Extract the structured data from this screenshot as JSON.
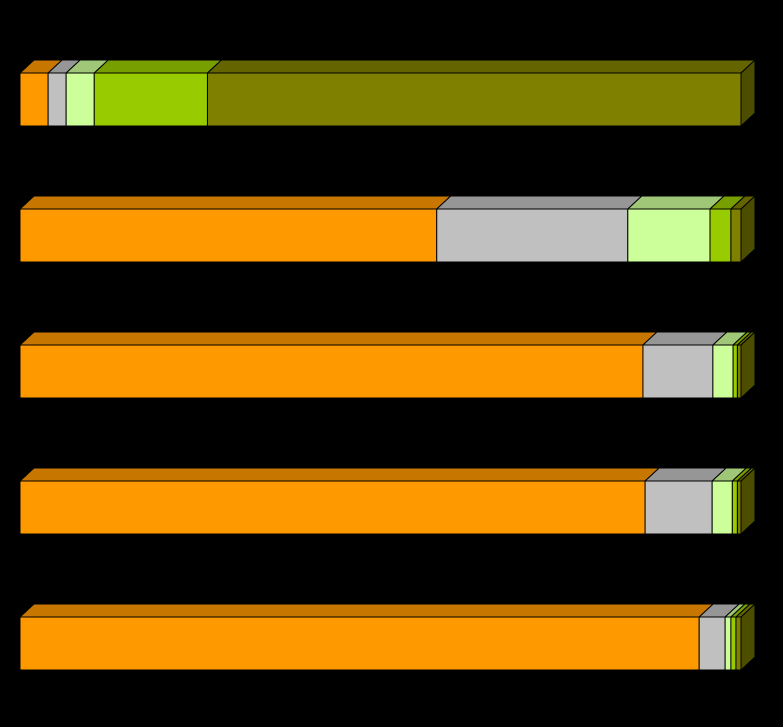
{
  "chart_data": {
    "type": "stacked_bar_3d",
    "orientation": "horizontal",
    "categories": [
      null,
      null,
      null,
      null,
      null
    ],
    "xlim": [
      0,
      100
    ],
    "series": [
      {
        "color": "#ff9900",
        "values": [
          3.9,
          57.8,
          86.4,
          86.7,
          94.2
        ]
      },
      {
        "color": "#c0c0c0",
        "values": [
          2.5,
          26.5,
          9.7,
          9.3,
          3.6
        ]
      },
      {
        "color": "#ccff99",
        "values": [
          3.9,
          11.4,
          2.8,
          2.8,
          0.8
        ]
      },
      {
        "color": "#99cc00",
        "values": [
          15.7,
          2.9,
          0.6,
          0.7,
          0.7
        ]
      },
      {
        "color": "#808000",
        "values": [
          74.0,
          1.4,
          0.5,
          0.5,
          0.7
        ]
      }
    ]
  }
}
